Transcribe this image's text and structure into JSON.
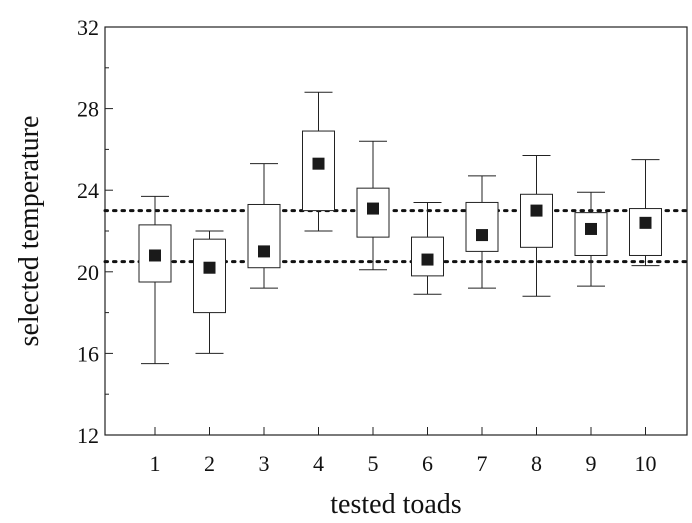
{
  "chart_data": {
    "type": "box",
    "title": "",
    "xlabel": "tested toads",
    "ylabel": "selected temperature",
    "ylim": [
      12,
      32
    ],
    "yticks": [
      12,
      16,
      20,
      24,
      28,
      32
    ],
    "categories": [
      "1",
      "2",
      "3",
      "4",
      "5",
      "6",
      "7",
      "8",
      "9",
      "10"
    ],
    "boxes": [
      {
        "category": "1",
        "whisker_low": 15.5,
        "q1": 19.5,
        "mean": 20.8,
        "q3": 22.3,
        "whisker_high": 23.7
      },
      {
        "category": "2",
        "whisker_low": 16.0,
        "q1": 18.0,
        "mean": 20.2,
        "q3": 21.6,
        "whisker_high": 22.0
      },
      {
        "category": "3",
        "whisker_low": 19.2,
        "q1": 20.2,
        "mean": 21.0,
        "q3": 23.3,
        "whisker_high": 25.3
      },
      {
        "category": "4",
        "whisker_low": 22.0,
        "q1": 23.0,
        "mean": 25.3,
        "q3": 26.9,
        "whisker_high": 28.8
      },
      {
        "category": "5",
        "whisker_low": 20.1,
        "q1": 21.7,
        "mean": 23.1,
        "q3": 24.1,
        "whisker_high": 26.4
      },
      {
        "category": "6",
        "whisker_low": 18.9,
        "q1": 19.8,
        "mean": 20.6,
        "q3": 21.7,
        "whisker_high": 23.4
      },
      {
        "category": "7",
        "whisker_low": 19.2,
        "q1": 21.0,
        "mean": 21.8,
        "q3": 23.4,
        "whisker_high": 24.7
      },
      {
        "category": "8",
        "whisker_low": 18.8,
        "q1": 21.2,
        "mean": 23.0,
        "q3": 23.8,
        "whisker_high": 25.7
      },
      {
        "category": "9",
        "whisker_low": 19.3,
        "q1": 20.8,
        "mean": 22.1,
        "q3": 22.9,
        "whisker_high": 23.9
      },
      {
        "category": "10",
        "whisker_low": 20.3,
        "q1": 20.8,
        "mean": 22.4,
        "q3": 23.1,
        "whisker_high": 25.5
      }
    ],
    "reference_lines": [
      23.0,
      20.5
    ],
    "grid": false,
    "legend": "none",
    "colors": {
      "box_fill": "#ffffff",
      "stroke": "#222222",
      "mean_marker": "#1a1a1a",
      "reference_line": "#111111"
    }
  }
}
